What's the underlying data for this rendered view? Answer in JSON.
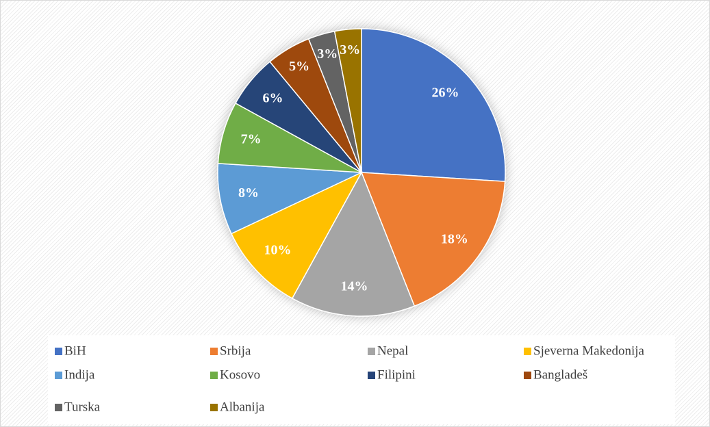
{
  "chart_data": {
    "type": "pie",
    "categories": [
      "BiH",
      "Srbija",
      "Nepal",
      "Sjeverna Makedonija",
      "Indija",
      "Kosovo",
      "Filipini",
      "Bangladeš",
      "Turska",
      "Albanija"
    ],
    "values": [
      26,
      18,
      14,
      10,
      8,
      7,
      6,
      5,
      3,
      3
    ],
    "value_labels": [
      "26%",
      "18%",
      "14%",
      "10%",
      "8%",
      "7%",
      "6%",
      "5%",
      "3%",
      "3%"
    ],
    "colors": [
      "#4472c4",
      "#ed7d31",
      "#a5a5a5",
      "#ffc000",
      "#5b9bd5",
      "#70ad47",
      "#264478",
      "#9e480e",
      "#636363",
      "#997300"
    ],
    "legend": "bottom"
  }
}
